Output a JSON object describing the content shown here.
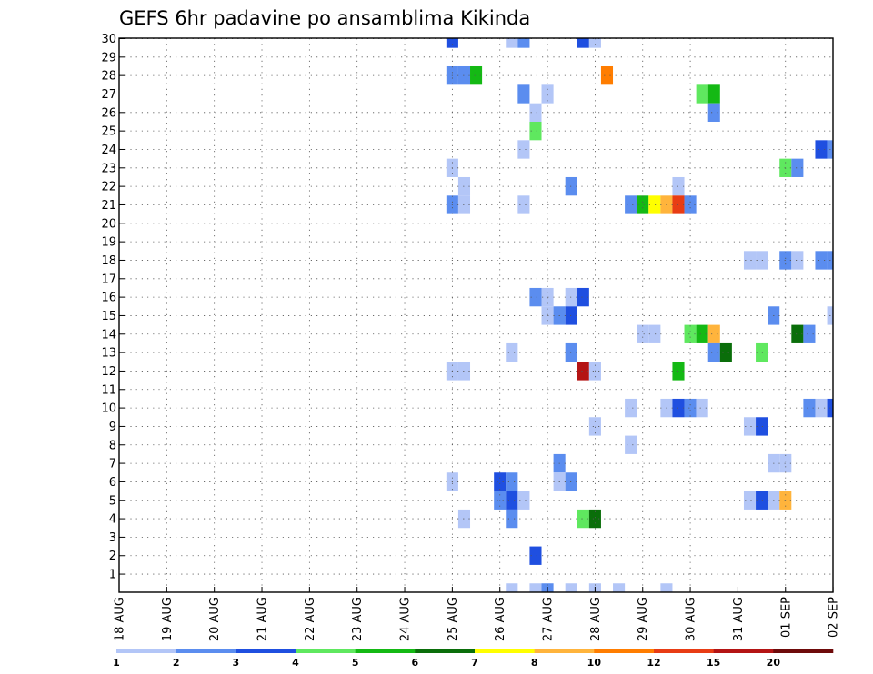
{
  "chart_data": {
    "type": "heatmap",
    "title": "GEFS 6hr padavine po ansamblima Kikinda",
    "y_ticks": [
      1,
      2,
      3,
      4,
      5,
      6,
      7,
      8,
      9,
      10,
      11,
      12,
      13,
      14,
      15,
      16,
      17,
      18,
      19,
      20,
      21,
      22,
      23,
      24,
      25,
      26,
      27,
      28,
      29,
      30
    ],
    "x_ticks": [
      "18 AUG",
      "19 AUG",
      "20 AUG",
      "21 AUG",
      "22 AUG",
      "23 AUG",
      "24 AUG",
      "25 AUG",
      "26 AUG",
      "27 AUG",
      "28 AUG",
      "29 AUG",
      "30 AUG",
      "31 AUG",
      "01 SEP",
      "02 SEP"
    ],
    "grid": true,
    "legend": "bottom",
    "colorbar": {
      "levels": [
        "1",
        "2",
        "3",
        "4",
        "5",
        "6",
        "7",
        "8",
        "10",
        "12",
        "15",
        "20"
      ],
      "colors": [
        "#b3c6f7",
        "#5b8def",
        "#1f4fe0",
        "#5fe85f",
        "#14b914",
        "#0a6e0a",
        "#ffff00",
        "#ffb43c",
        "#ff7d00",
        "#e83c14",
        "#b41414",
        "#6e0a0a"
      ]
    },
    "cells": [
      {
        "date": "25 AUG 00Z",
        "member": 30,
        "value": 3.5
      },
      {
        "date": "26 AUG 06Z",
        "member": 30,
        "value": 1.5
      },
      {
        "date": "26 AUG 12Z",
        "member": 30,
        "value": 2.5
      },
      {
        "date": "27 AUG 18Z",
        "member": 30,
        "value": 3.5
      },
      {
        "date": "28 AUG 00Z",
        "member": 30,
        "value": 1.5
      },
      {
        "date": "25 AUG 00Z",
        "member": 28,
        "value": 2.5
      },
      {
        "date": "25 AUG 06Z",
        "member": 28,
        "value": 2.5
      },
      {
        "date": "25 AUG 12Z",
        "member": 28,
        "value": 5.5
      },
      {
        "date": "28 AUG 06Z",
        "member": 28,
        "value": 11
      },
      {
        "date": "26 AUG 12Z",
        "member": 27,
        "value": 2.5
      },
      {
        "date": "27 AUG 00Z",
        "member": 27,
        "value": 1.5
      },
      {
        "date": "30 AUG 06Z",
        "member": 27,
        "value": 4.5
      },
      {
        "date": "30 AUG 12Z",
        "member": 27,
        "value": 5.5
      },
      {
        "date": "26 AUG 18Z",
        "member": 26,
        "value": 1.5
      },
      {
        "date": "30 AUG 12Z",
        "member": 26,
        "value": 2.5
      },
      {
        "date": "26 AUG 18Z",
        "member": 25,
        "value": 4.5
      },
      {
        "date": "26 AUG 12Z",
        "member": 24,
        "value": 1.5
      },
      {
        "date": "01 SEP 18Z",
        "member": 24,
        "value": 3.5
      },
      {
        "date": "02 SEP 00Z",
        "member": 24,
        "value": 2.5
      },
      {
        "date": "25 AUG 00Z",
        "member": 23,
        "value": 1.5
      },
      {
        "date": "01 SEP 00Z",
        "member": 23,
        "value": 4.5
      },
      {
        "date": "01 SEP 06Z",
        "member": 23,
        "value": 2.5
      },
      {
        "date": "25 AUG 06Z",
        "member": 22,
        "value": 1.5
      },
      {
        "date": "27 AUG 12Z",
        "member": 22,
        "value": 2.5
      },
      {
        "date": "29 AUG 18Z",
        "member": 22,
        "value": 1.5
      },
      {
        "date": "25 AUG 00Z",
        "member": 21,
        "value": 2.5
      },
      {
        "date": "25 AUG 06Z",
        "member": 21,
        "value": 1.5
      },
      {
        "date": "26 AUG 12Z",
        "member": 21,
        "value": 1.5
      },
      {
        "date": "28 AUG 18Z",
        "member": 21,
        "value": 2.5
      },
      {
        "date": "29 AUG 00Z",
        "member": 21,
        "value": 5.5
      },
      {
        "date": "29 AUG 06Z",
        "member": 21,
        "value": 7.5
      },
      {
        "date": "29 AUG 12Z",
        "member": 21,
        "value": 9
      },
      {
        "date": "29 AUG 18Z",
        "member": 21,
        "value": 13.5
      },
      {
        "date": "30 AUG 00Z",
        "member": 21,
        "value": 2.5
      },
      {
        "date": "31 AUG 06Z",
        "member": 18,
        "value": 1.5
      },
      {
        "date": "31 AUG 12Z",
        "member": 18,
        "value": 1.5
      },
      {
        "date": "01 SEP 00Z",
        "member": 18,
        "value": 2.5
      },
      {
        "date": "01 SEP 06Z",
        "member": 18,
        "value": 1.5
      },
      {
        "date": "01 SEP 18Z",
        "member": 18,
        "value": 2.5
      },
      {
        "date": "02 SEP 00Z",
        "member": 18,
        "value": 2.5
      },
      {
        "date": "26 AUG 18Z",
        "member": 16,
        "value": 2.5
      },
      {
        "date": "27 AUG 00Z",
        "member": 16,
        "value": 1.5
      },
      {
        "date": "27 AUG 12Z",
        "member": 16,
        "value": 1.5
      },
      {
        "date": "27 AUG 18Z",
        "member": 16,
        "value": 3.5
      },
      {
        "date": "27 AUG 00Z",
        "member": 15,
        "value": 1.5
      },
      {
        "date": "27 AUG 06Z",
        "member": 15,
        "value": 2.5
      },
      {
        "date": "27 AUG 12Z",
        "member": 15,
        "value": 3.5
      },
      {
        "date": "31 AUG 18Z",
        "member": 15,
        "value": 2.5
      },
      {
        "date": "02 SEP 00Z",
        "member": 15,
        "value": 1.5
      },
      {
        "date": "29 AUG 00Z",
        "member": 14,
        "value": 1.5
      },
      {
        "date": "29 AUG 06Z",
        "member": 14,
        "value": 1.5
      },
      {
        "date": "30 AUG 00Z",
        "member": 14,
        "value": 4.5
      },
      {
        "date": "30 AUG 06Z",
        "member": 14,
        "value": 5.5
      },
      {
        "date": "30 AUG 12Z",
        "member": 14,
        "value": 8.5
      },
      {
        "date": "01 SEP 06Z",
        "member": 14,
        "value": 6.5
      },
      {
        "date": "01 SEP 12Z",
        "member": 14,
        "value": 2.5
      },
      {
        "date": "26 AUG 06Z",
        "member": 13,
        "value": 1.5
      },
      {
        "date": "27 AUG 12Z",
        "member": 13,
        "value": 2.5
      },
      {
        "date": "30 AUG 12Z",
        "member": 13,
        "value": 2.5
      },
      {
        "date": "30 AUG 18Z",
        "member": 13,
        "value": 6.5
      },
      {
        "date": "31 AUG 12Z",
        "member": 13,
        "value": 4.5
      },
      {
        "date": "25 AUG 00Z",
        "member": 12,
        "value": 1.5
      },
      {
        "date": "25 AUG 06Z",
        "member": 12,
        "value": 1.5
      },
      {
        "date": "27 AUG 18Z",
        "member": 12,
        "value": 17
      },
      {
        "date": "28 AUG 00Z",
        "member": 12,
        "value": 1.5
      },
      {
        "date": "29 AUG 18Z",
        "member": 12,
        "value": 5.5
      },
      {
        "date": "28 AUG 18Z",
        "member": 10,
        "value": 1.5
      },
      {
        "date": "29 AUG 12Z",
        "member": 10,
        "value": 1.5
      },
      {
        "date": "29 AUG 18Z",
        "member": 10,
        "value": 3.5
      },
      {
        "date": "30 AUG 00Z",
        "member": 10,
        "value": 2.5
      },
      {
        "date": "30 AUG 06Z",
        "member": 10,
        "value": 1.5
      },
      {
        "date": "01 SEP 12Z",
        "member": 10,
        "value": 2.5
      },
      {
        "date": "01 SEP 18Z",
        "member": 10,
        "value": 1.5
      },
      {
        "date": "02 SEP 00Z",
        "member": 10,
        "value": 3.5
      },
      {
        "date": "28 AUG 00Z",
        "member": 9,
        "value": 1.5
      },
      {
        "date": "31 AUG 06Z",
        "member": 9,
        "value": 1.5
      },
      {
        "date": "31 AUG 12Z",
        "member": 9,
        "value": 3.5
      },
      {
        "date": "28 AUG 18Z",
        "member": 8,
        "value": 1.5
      },
      {
        "date": "27 AUG 06Z",
        "member": 7,
        "value": 2.5
      },
      {
        "date": "31 AUG 18Z",
        "member": 7,
        "value": 1.5
      },
      {
        "date": "01 SEP 00Z",
        "member": 7,
        "value": 1.5
      },
      {
        "date": "25 AUG 00Z",
        "member": 6,
        "value": 1.5
      },
      {
        "date": "26 AUG 00Z",
        "member": 6,
        "value": 3.5
      },
      {
        "date": "26 AUG 06Z",
        "member": 6,
        "value": 2.5
      },
      {
        "date": "27 AUG 06Z",
        "member": 6,
        "value": 1.5
      },
      {
        "date": "27 AUG 12Z",
        "member": 6,
        "value": 2.5
      },
      {
        "date": "26 AUG 00Z",
        "member": 5,
        "value": 2.5
      },
      {
        "date": "26 AUG 06Z",
        "member": 5,
        "value": 3.5
      },
      {
        "date": "26 AUG 12Z",
        "member": 5,
        "value": 1.5
      },
      {
        "date": "31 AUG 06Z",
        "member": 5,
        "value": 1.5
      },
      {
        "date": "31 AUG 12Z",
        "member": 5,
        "value": 3.5
      },
      {
        "date": "31 AUG 18Z",
        "member": 5,
        "value": 1.5
      },
      {
        "date": "01 SEP 00Z",
        "member": 5,
        "value": 9
      },
      {
        "date": "25 AUG 06Z",
        "member": 4,
        "value": 1.5
      },
      {
        "date": "26 AUG 06Z",
        "member": 4,
        "value": 2.5
      },
      {
        "date": "27 AUG 18Z",
        "member": 4,
        "value": 4.5
      },
      {
        "date": "28 AUG 00Z",
        "member": 4,
        "value": 6.5
      },
      {
        "date": "26 AUG 18Z",
        "member": 2,
        "value": 3.5
      },
      {
        "date": "26 AUG 06Z",
        "member": 0,
        "value": 1.5
      },
      {
        "date": "26 AUG 18Z",
        "member": 0,
        "value": 1.5
      },
      {
        "date": "27 AUG 00Z",
        "member": 0,
        "value": 2.5
      },
      {
        "date": "27 AUG 12Z",
        "member": 0,
        "value": 1.5
      },
      {
        "date": "28 AUG 00Z",
        "member": 0,
        "value": 1.5
      },
      {
        "date": "28 AUG 12Z",
        "member": 0,
        "value": 1.5
      },
      {
        "date": "29 AUG 12Z",
        "member": 0,
        "value": 1.5
      }
    ]
  }
}
